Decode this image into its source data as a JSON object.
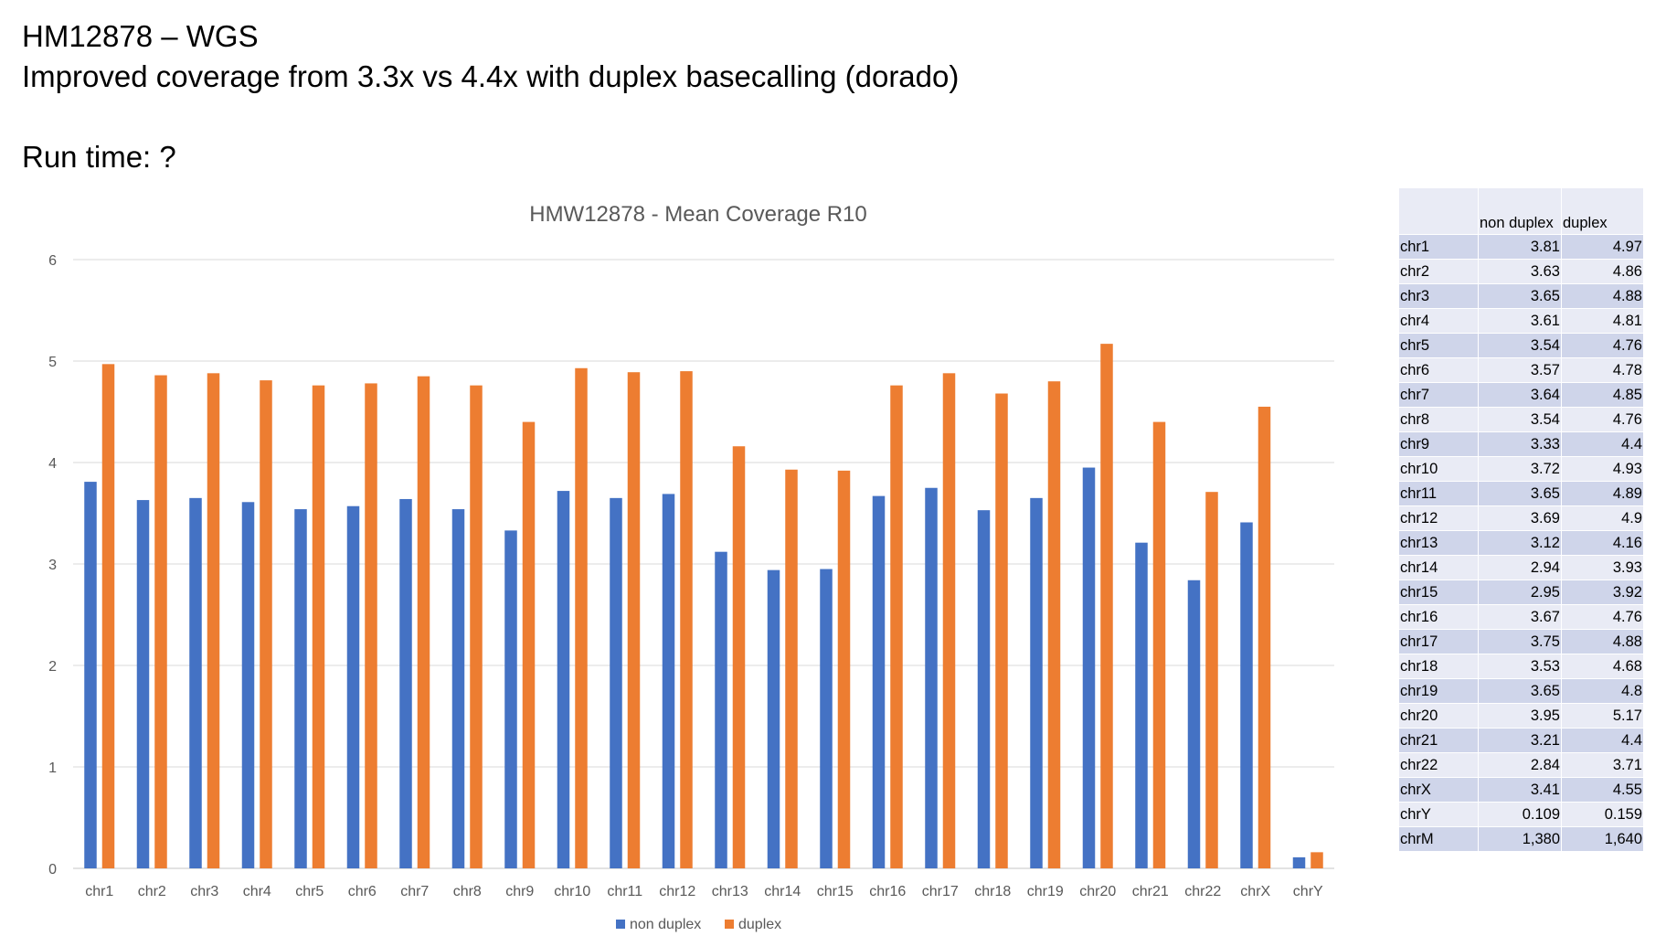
{
  "slide": {
    "title_line1": "HM12878 – WGS",
    "title_line2": "Improved coverage from 3.3x vs 4.4x with duplex basecalling (dorado)",
    "run_time": "Run time: ?"
  },
  "colors": {
    "non_duplex": "#4472C4",
    "duplex": "#ED7D31",
    "grid": "#D9D9D9",
    "axis_text": "#595959"
  },
  "chart_data": {
    "type": "bar",
    "title": "HMW12878 - Mean Coverage R10",
    "xlabel": "",
    "ylabel": "",
    "ylim": [
      0,
      6
    ],
    "yticks": [
      "0",
      "1",
      "2",
      "3",
      "4",
      "5",
      "6"
    ],
    "grid": true,
    "legend_position": "bottom-center",
    "categories": [
      "chr1",
      "chr2",
      "chr3",
      "chr4",
      "chr5",
      "chr6",
      "chr7",
      "chr8",
      "chr9",
      "chr10",
      "chr11",
      "chr12",
      "chr13",
      "chr14",
      "chr15",
      "chr16",
      "chr17",
      "chr18",
      "chr19",
      "chr20",
      "chr21",
      "chr22",
      "chrX",
      "chrY"
    ],
    "series": [
      {
        "name": "non duplex",
        "values": [
          3.81,
          3.63,
          3.65,
          3.61,
          3.54,
          3.57,
          3.64,
          3.54,
          3.33,
          3.72,
          3.65,
          3.69,
          3.12,
          2.94,
          2.95,
          3.67,
          3.75,
          3.53,
          3.65,
          3.95,
          3.21,
          2.84,
          3.41,
          0.109
        ]
      },
      {
        "name": "duplex",
        "values": [
          4.97,
          4.86,
          4.88,
          4.81,
          4.76,
          4.78,
          4.85,
          4.76,
          4.4,
          4.93,
          4.89,
          4.9,
          4.16,
          3.93,
          3.92,
          4.76,
          4.88,
          4.68,
          4.8,
          5.17,
          4.4,
          3.71,
          4.55,
          0.159
        ]
      }
    ]
  },
  "table": {
    "headers": [
      "",
      "non duplex",
      "duplex"
    ],
    "rows": [
      [
        "chr1",
        "3.81",
        "4.97"
      ],
      [
        "chr2",
        "3.63",
        "4.86"
      ],
      [
        "chr3",
        "3.65",
        "4.88"
      ],
      [
        "chr4",
        "3.61",
        "4.81"
      ],
      [
        "chr5",
        "3.54",
        "4.76"
      ],
      [
        "chr6",
        "3.57",
        "4.78"
      ],
      [
        "chr7",
        "3.64",
        "4.85"
      ],
      [
        "chr8",
        "3.54",
        "4.76"
      ],
      [
        "chr9",
        "3.33",
        "4.4"
      ],
      [
        "chr10",
        "3.72",
        "4.93"
      ],
      [
        "chr11",
        "3.65",
        "4.89"
      ],
      [
        "chr12",
        "3.69",
        "4.9"
      ],
      [
        "chr13",
        "3.12",
        "4.16"
      ],
      [
        "chr14",
        "2.94",
        "3.93"
      ],
      [
        "chr15",
        "2.95",
        "3.92"
      ],
      [
        "chr16",
        "3.67",
        "4.76"
      ],
      [
        "chr17",
        "3.75",
        "4.88"
      ],
      [
        "chr18",
        "3.53",
        "4.68"
      ],
      [
        "chr19",
        "3.65",
        "4.8"
      ],
      [
        "chr20",
        "3.95",
        "5.17"
      ],
      [
        "chr21",
        "3.21",
        "4.4"
      ],
      [
        "chr22",
        "2.84",
        "3.71"
      ],
      [
        "chrX",
        "3.41",
        "4.55"
      ],
      [
        "chrY",
        "0.109",
        "0.159"
      ],
      [
        "chrM",
        "1,380",
        "1,640"
      ]
    ]
  }
}
